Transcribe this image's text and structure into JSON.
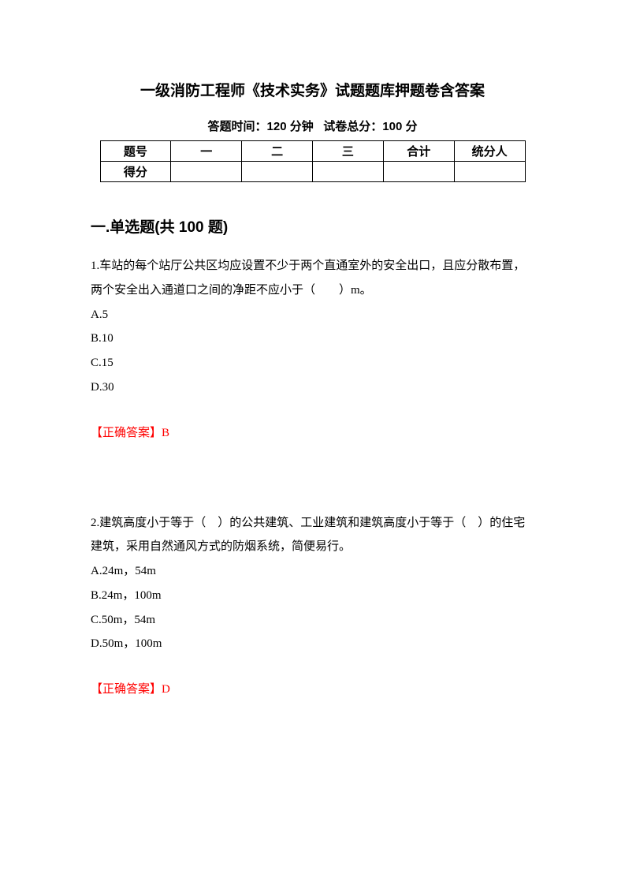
{
  "header": {
    "title": "一级消防工程师《技术实务》试题题库押题卷含答案",
    "time_label": "答题时间：",
    "time_value": "120 分钟",
    "score_label": "试卷总分：",
    "score_value": "100 分"
  },
  "table": {
    "row1": {
      "label": "题号",
      "col1": "一",
      "col2": "二",
      "col3": "三",
      "col4": "合计",
      "col5": "统分人"
    },
    "row2": {
      "label": "得分",
      "col1": "",
      "col2": "",
      "col3": "",
      "col4": "",
      "col5": ""
    }
  },
  "section": {
    "title": "一.单选题(共 100 题)"
  },
  "questions": [
    {
      "text": "1.车站的每个站厅公共区均应设置不少于两个直通室外的安全出口，且应分散布置，两个安全出入通道口之间的净距不应小于（　　）m。",
      "options": {
        "a": "A.5",
        "b": "B.10",
        "c": "C.15",
        "d": "D.30"
      },
      "answer": "【正确答案】B"
    },
    {
      "text": "2.建筑高度小于等于（　）的公共建筑、工业建筑和建筑高度小于等于（　）的住宅建筑，采用自然通风方式的防烟系统，简便易行。",
      "options": {
        "a": "A.24m，54m",
        "b": "B.24m，100m",
        "c": "C.50m，54m",
        "d": "D.50m，100m"
      },
      "answer": "【正确答案】D"
    }
  ]
}
